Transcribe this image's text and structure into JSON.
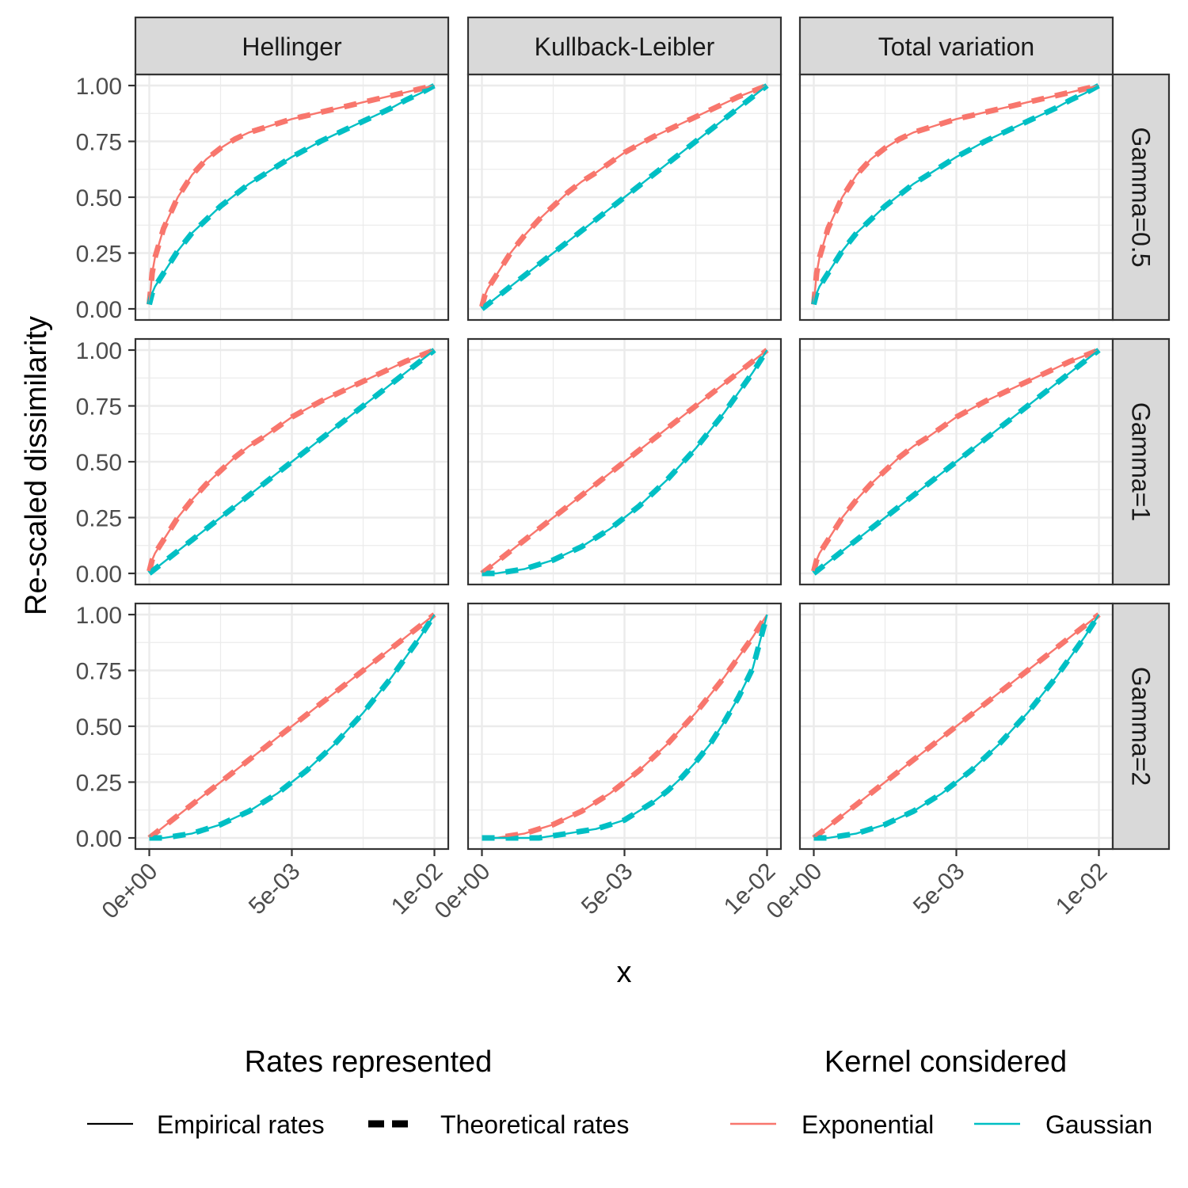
{
  "chart_data": {
    "type": "line",
    "xlabel": "x",
    "ylabel": "Re-scaled dissimilarity",
    "xlim": [
      0,
      0.01
    ],
    "ylim": [
      0,
      1
    ],
    "x_ticks": [
      0,
      0.005,
      0.01
    ],
    "x_tick_labels": [
      "0e+00",
      "5e-03",
      "1e-02"
    ],
    "y_ticks": [
      0,
      0.25,
      0.5,
      0.75,
      1
    ],
    "y_tick_labels": [
      "0.00",
      "0.25",
      "0.50",
      "0.75",
      "1.00"
    ],
    "grid": true,
    "facet_cols": [
      "Hellinger",
      "Kullback-Leibler",
      "Total variation"
    ],
    "facet_rows": [
      "Gamma=0.5",
      "Gamma=1",
      "Gamma=2"
    ],
    "series_x": [
      0,
      0.0001,
      0.0002,
      0.0005,
      0.001,
      0.0015,
      0.002,
      0.0025,
      0.003,
      0.0035,
      0.004,
      0.0045,
      0.005,
      0.0055,
      0.006,
      0.0065,
      0.007,
      0.0075,
      0.008,
      0.0085,
      0.009,
      0.0095,
      0.01
    ],
    "panels": [
      {
        "col": "Hellinger",
        "row": "Gamma=0.5",
        "exponential": [
          0.02,
          0.16,
          0.23,
          0.36,
          0.5,
          0.6,
          0.67,
          0.72,
          0.76,
          0.79,
          0.81,
          0.83,
          0.85,
          0.865,
          0.88,
          0.895,
          0.91,
          0.925,
          0.94,
          0.955,
          0.97,
          0.985,
          1.0
        ],
        "gaussian": [
          0.02,
          0.07,
          0.1,
          0.16,
          0.26,
          0.34,
          0.4,
          0.46,
          0.51,
          0.56,
          0.6,
          0.64,
          0.68,
          0.715,
          0.75,
          0.78,
          0.81,
          0.84,
          0.87,
          0.9,
          0.935,
          0.965,
          1.0
        ]
      },
      {
        "col": "Kullback-Leibler",
        "row": "Gamma=0.5",
        "exponential": [
          0.01,
          0.06,
          0.09,
          0.15,
          0.25,
          0.33,
          0.4,
          0.46,
          0.52,
          0.57,
          0.61,
          0.655,
          0.7,
          0.735,
          0.77,
          0.8,
          0.83,
          0.86,
          0.89,
          0.92,
          0.95,
          0.975,
          1.0
        ],
        "gaussian": [
          0.0,
          0.01,
          0.02,
          0.05,
          0.1,
          0.15,
          0.2,
          0.25,
          0.3,
          0.35,
          0.4,
          0.45,
          0.5,
          0.55,
          0.6,
          0.65,
          0.7,
          0.75,
          0.8,
          0.85,
          0.9,
          0.95,
          1.0
        ]
      },
      {
        "col": "Total variation",
        "row": "Gamma=0.5",
        "exponential": [
          0.02,
          0.16,
          0.23,
          0.36,
          0.5,
          0.6,
          0.67,
          0.72,
          0.76,
          0.79,
          0.81,
          0.83,
          0.85,
          0.865,
          0.88,
          0.895,
          0.91,
          0.925,
          0.94,
          0.955,
          0.97,
          0.985,
          1.0
        ],
        "gaussian": [
          0.02,
          0.07,
          0.1,
          0.16,
          0.26,
          0.34,
          0.4,
          0.46,
          0.51,
          0.56,
          0.6,
          0.64,
          0.68,
          0.715,
          0.75,
          0.78,
          0.81,
          0.84,
          0.87,
          0.9,
          0.935,
          0.965,
          1.0
        ]
      },
      {
        "col": "Hellinger",
        "row": "Gamma=1",
        "exponential": [
          0.01,
          0.06,
          0.09,
          0.15,
          0.25,
          0.33,
          0.4,
          0.46,
          0.52,
          0.57,
          0.61,
          0.655,
          0.7,
          0.735,
          0.77,
          0.8,
          0.83,
          0.86,
          0.89,
          0.92,
          0.95,
          0.975,
          1.0
        ],
        "gaussian": [
          0.0,
          0.01,
          0.02,
          0.05,
          0.1,
          0.15,
          0.2,
          0.25,
          0.3,
          0.35,
          0.4,
          0.45,
          0.5,
          0.55,
          0.6,
          0.65,
          0.7,
          0.75,
          0.8,
          0.85,
          0.9,
          0.95,
          1.0
        ]
      },
      {
        "col": "Kullback-Leibler",
        "row": "Gamma=1",
        "exponential": [
          0.0,
          0.01,
          0.02,
          0.05,
          0.1,
          0.15,
          0.2,
          0.25,
          0.3,
          0.35,
          0.4,
          0.45,
          0.5,
          0.55,
          0.6,
          0.65,
          0.7,
          0.75,
          0.8,
          0.85,
          0.9,
          0.95,
          1.0
        ],
        "gaussian": [
          0.0,
          0.0,
          0.0,
          0.0,
          0.01,
          0.02,
          0.04,
          0.06,
          0.09,
          0.12,
          0.16,
          0.2,
          0.25,
          0.3,
          0.36,
          0.42,
          0.49,
          0.56,
          0.64,
          0.72,
          0.81,
          0.9,
          1.0
        ]
      },
      {
        "col": "Total variation",
        "row": "Gamma=1",
        "exponential": [
          0.01,
          0.06,
          0.09,
          0.15,
          0.25,
          0.33,
          0.4,
          0.46,
          0.52,
          0.57,
          0.61,
          0.655,
          0.7,
          0.735,
          0.77,
          0.8,
          0.83,
          0.86,
          0.89,
          0.92,
          0.95,
          0.975,
          1.0
        ],
        "gaussian": [
          0.0,
          0.01,
          0.02,
          0.05,
          0.1,
          0.15,
          0.2,
          0.25,
          0.3,
          0.35,
          0.4,
          0.45,
          0.5,
          0.55,
          0.6,
          0.65,
          0.7,
          0.75,
          0.8,
          0.85,
          0.9,
          0.95,
          1.0
        ]
      },
      {
        "col": "Hellinger",
        "row": "Gamma=2",
        "exponential": [
          0.0,
          0.01,
          0.02,
          0.05,
          0.1,
          0.15,
          0.2,
          0.25,
          0.3,
          0.35,
          0.4,
          0.45,
          0.5,
          0.55,
          0.6,
          0.65,
          0.7,
          0.75,
          0.8,
          0.85,
          0.9,
          0.95,
          1.0
        ],
        "gaussian": [
          0.0,
          0.0,
          0.0,
          0.0,
          0.01,
          0.02,
          0.04,
          0.06,
          0.09,
          0.12,
          0.16,
          0.2,
          0.25,
          0.3,
          0.36,
          0.42,
          0.49,
          0.56,
          0.64,
          0.72,
          0.81,
          0.9,
          1.0
        ]
      },
      {
        "col": "Kullback-Leibler",
        "row": "Gamma=2",
        "exponential": [
          0.0,
          0.0,
          0.0,
          0.0,
          0.01,
          0.02,
          0.04,
          0.06,
          0.09,
          0.12,
          0.16,
          0.2,
          0.25,
          0.3,
          0.36,
          0.42,
          0.49,
          0.56,
          0.64,
          0.72,
          0.81,
          0.9,
          1.0
        ],
        "gaussian": [
          0.0,
          0.0,
          0.0,
          0.0,
          0.0,
          0.0,
          0.0,
          0.01,
          0.02,
          0.03,
          0.04,
          0.06,
          0.08,
          0.12,
          0.16,
          0.21,
          0.27,
          0.34,
          0.42,
          0.52,
          0.63,
          0.76,
          1.0
        ]
      },
      {
        "col": "Total variation",
        "row": "Gamma=2",
        "exponential": [
          0.0,
          0.01,
          0.02,
          0.05,
          0.1,
          0.15,
          0.2,
          0.25,
          0.3,
          0.35,
          0.4,
          0.45,
          0.5,
          0.55,
          0.6,
          0.65,
          0.7,
          0.75,
          0.8,
          0.85,
          0.9,
          0.95,
          1.0
        ],
        "gaussian": [
          0.0,
          0.0,
          0.0,
          0.0,
          0.01,
          0.02,
          0.04,
          0.06,
          0.09,
          0.12,
          0.16,
          0.2,
          0.25,
          0.3,
          0.36,
          0.42,
          0.49,
          0.56,
          0.64,
          0.72,
          0.81,
          0.9,
          1.0
        ]
      }
    ],
    "legend_linetype": {
      "title": "Rates represented",
      "items": [
        "Empirical rates",
        "Theoretical rates"
      ]
    },
    "legend_color": {
      "title": "Kernel considered",
      "items": [
        "Exponential",
        "Gaussian"
      ]
    },
    "colors": {
      "Exponential": "#F8766D",
      "Gaussian": "#00BFC4",
      "strip_fill": "#d9d9d9",
      "grid": "#ebebeb",
      "axis_text": "#4d4d4d"
    },
    "legend_position": "bottom"
  }
}
